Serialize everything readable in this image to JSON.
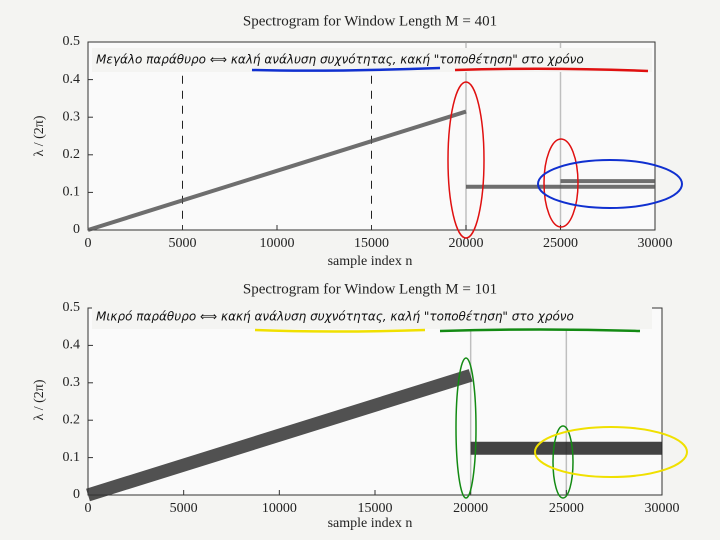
{
  "chart_data": [
    {
      "type": "line",
      "title": "Spectrogram for Window Length M = 401",
      "annotation": "Μεγάλο παράθυρο ⟺ καλή ανάλυση συχνότητας, κακή \"τοποθέτηση\" στο χρόνο",
      "xlabel": "sample index n",
      "ylabel": "λ / (2π)",
      "xlim": [
        0,
        30000
      ],
      "xticks": [
        0,
        5000,
        10000,
        15000,
        20000,
        25000,
        30000
      ],
      "ylim": [
        0,
        0.5
      ],
      "yticks": [
        0,
        0.1,
        0.2,
        0.3,
        0.4,
        0.5
      ],
      "line_width": 4,
      "vlines": [
        5000,
        15000
      ],
      "transients": [
        20000,
        25000
      ],
      "series": [
        {
          "color": "#555",
          "x": [
            0,
            20000
          ],
          "values": [
            0,
            0.315
          ]
        },
        {
          "color": "#555",
          "x": [
            20000,
            30000
          ],
          "values": [
            0.115,
            0.115
          ]
        },
        {
          "color": "#555",
          "x": [
            25000,
            30000
          ],
          "values": [
            0.13,
            0.13
          ]
        }
      ]
    },
    {
      "type": "line",
      "title": "Spectrogram for Window Length M = 101",
      "annotation": "Μικρό παράθυρο ⟺ κακή ανάλυση συχνότητας, καλή \"τοποθέτηση\" στο χρόνο",
      "xlabel": "sample index n",
      "ylabel": "λ / (2π)",
      "xlim": [
        0,
        30000
      ],
      "xticks": [
        0,
        5000,
        10000,
        15000,
        20000,
        25000,
        30000
      ],
      "ylim": [
        0,
        0.5
      ],
      "yticks": [
        0,
        0.1,
        0.2,
        0.3,
        0.4,
        0.5
      ],
      "line_width": 13,
      "transients": [
        20000,
        25000
      ],
      "series": [
        {
          "color": "#333",
          "x": [
            0,
            20000
          ],
          "values": [
            0,
            0.32
          ]
        },
        {
          "color": "#222",
          "x": [
            20000,
            30000
          ],
          "values": [
            0.125,
            0.125
          ]
        }
      ]
    }
  ]
}
